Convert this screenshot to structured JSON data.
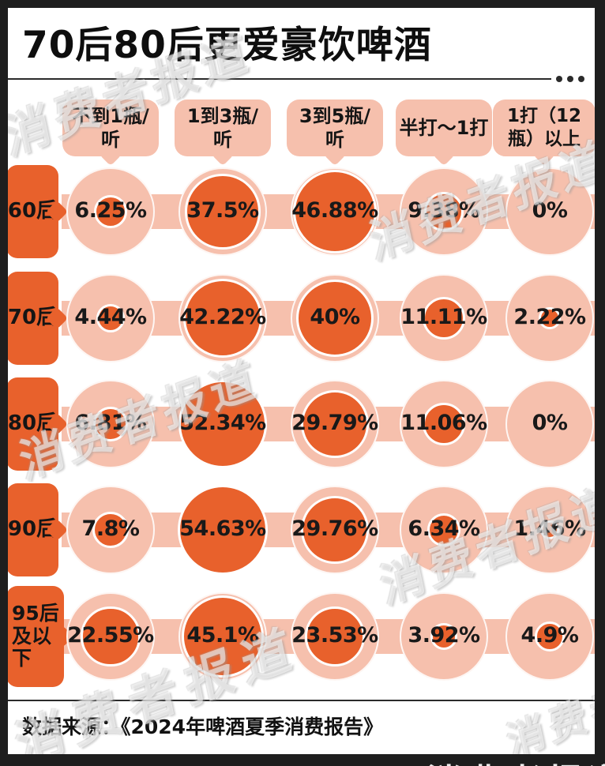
{
  "title": "70后80后更爱豪饮啤酒",
  "menu_icon": "more-dots",
  "watermark": {
    "text": "消费者报道"
  },
  "source": {
    "text": "数据来源：《2024年啤酒夏季消费报告》"
  },
  "chart_data": {
    "type": "bubble",
    "title": "70后80后更爱豪饮啤酒",
    "unit": "%",
    "columns": [
      "不到1瓶/听",
      "1到3瓶/听",
      "3到5瓶/听",
      "半打～1打",
      "1打（12瓶）以上"
    ],
    "rows": [
      "60后",
      "70后",
      "80后",
      "90后",
      "95后及以下"
    ],
    "series": [
      {
        "name": "60后",
        "values": [
          6.25,
          37.5,
          46.88,
          9.38,
          0
        ],
        "labels": [
          "6.25%",
          "37.5%",
          "46.88%",
          "9.38%",
          "0%"
        ]
      },
      {
        "name": "70后",
        "values": [
          4.44,
          42.22,
          40,
          11.11,
          2.22
        ],
        "labels": [
          "4.44%",
          "42.22%",
          "40%",
          "11.11%",
          "2.22%"
        ]
      },
      {
        "name": "80后",
        "values": [
          6.81,
          52.34,
          29.79,
          11.06,
          0
        ],
        "labels": [
          "6.81%",
          "52.34%",
          "29.79%",
          "11.06%",
          "0%"
        ]
      },
      {
        "name": "90后",
        "values": [
          7.8,
          54.63,
          29.76,
          6.34,
          1.46
        ],
        "labels": [
          "7.8%",
          "54.63%",
          "29.76%",
          "6.34%",
          "1.46%"
        ]
      },
      {
        "name": "95后及以下",
        "values": [
          22.55,
          45.1,
          23.53,
          3.92,
          4.9
        ],
        "labels": [
          "22.55%",
          "45.1%",
          "23.53%",
          "3.92%",
          "4.9%"
        ]
      }
    ],
    "legend": "bubble size = share of respondents",
    "colors": {
      "accent_orange": "#E8612C",
      "light_pink": "#F6C0AD",
      "frame_black": "#1E1E1E",
      "text_black": "#151515"
    }
  }
}
